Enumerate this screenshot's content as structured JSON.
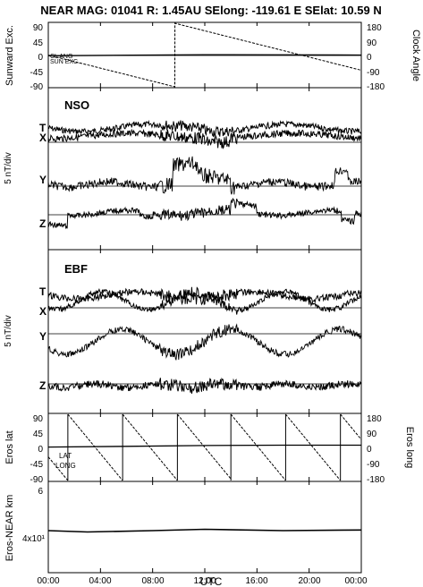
{
  "header": {
    "title": "NEAR MAG: 01041  R: 1.45AU  SElong: -119.61 E  SElat:  10.59 N"
  },
  "chart_data": [
    {
      "id": "orient",
      "type": "line",
      "ylabel_left": "Sunward Exc.",
      "ylabel_right": "Clock Angle",
      "left_ticks": [
        "90",
        "45",
        "0",
        "-45",
        "-90"
      ],
      "right_ticks": [
        "180",
        "90",
        "0",
        "-90",
        "-180"
      ],
      "labels": [
        "CL ANG",
        "SUN EXC."
      ],
      "ylim": [
        -90,
        90
      ],
      "clock_angle": {
        "x": [
          0,
          9.7,
          9.71,
          24
        ],
        "y": [
          0,
          -180,
          180,
          -86
        ]
      },
      "sunward_exc": {
        "x": [
          0,
          12,
          24
        ],
        "y": [
          -2,
          1,
          0
        ]
      }
    },
    {
      "id": "nso",
      "type": "line",
      "title": "NSO",
      "ylabel": "5 nT/div",
      "series_labels": [
        "T",
        "X",
        "Y",
        "Z"
      ]
    },
    {
      "id": "ebf",
      "type": "line",
      "title": "EBF",
      "ylabel": "5 nT/div",
      "series_labels": [
        "T",
        "X",
        "Y",
        "Z"
      ]
    },
    {
      "id": "eros",
      "type": "line",
      "ylabel_left": "Eros lat",
      "ylabel_right": "Eros long",
      "left_ticks": [
        "90",
        "45",
        "0",
        "-45",
        "-90"
      ],
      "right_ticks": [
        "180",
        "90",
        "0",
        "-90",
        "-180"
      ],
      "labels": [
        "LAT",
        "LONG"
      ],
      "eros_lat": {
        "x": [
          0,
          6,
          12,
          18,
          24
        ],
        "y": [
          1,
          3,
          5,
          6,
          6
        ]
      },
      "eros_long_resets_hours": [
        1.5,
        5.7,
        9.9,
        14.0,
        18.2,
        22.4
      ]
    },
    {
      "id": "dist",
      "type": "line",
      "ylabel": "Eros-NEAR km",
      "ticks": [
        "6",
        "4x10¹"
      ],
      "distance": {
        "x": [
          0,
          3,
          8,
          12,
          18,
          24
        ],
        "y": [
          3.1,
          3.0,
          3.1,
          3.2,
          3.1,
          3.15
        ]
      }
    }
  ],
  "x_axis": {
    "label": "UTC",
    "ticks": [
      "00:00",
      "04:00",
      "08:00",
      "12:00",
      "16:00",
      "20:00",
      "00:00"
    ],
    "range_hours": [
      0,
      24
    ]
  }
}
